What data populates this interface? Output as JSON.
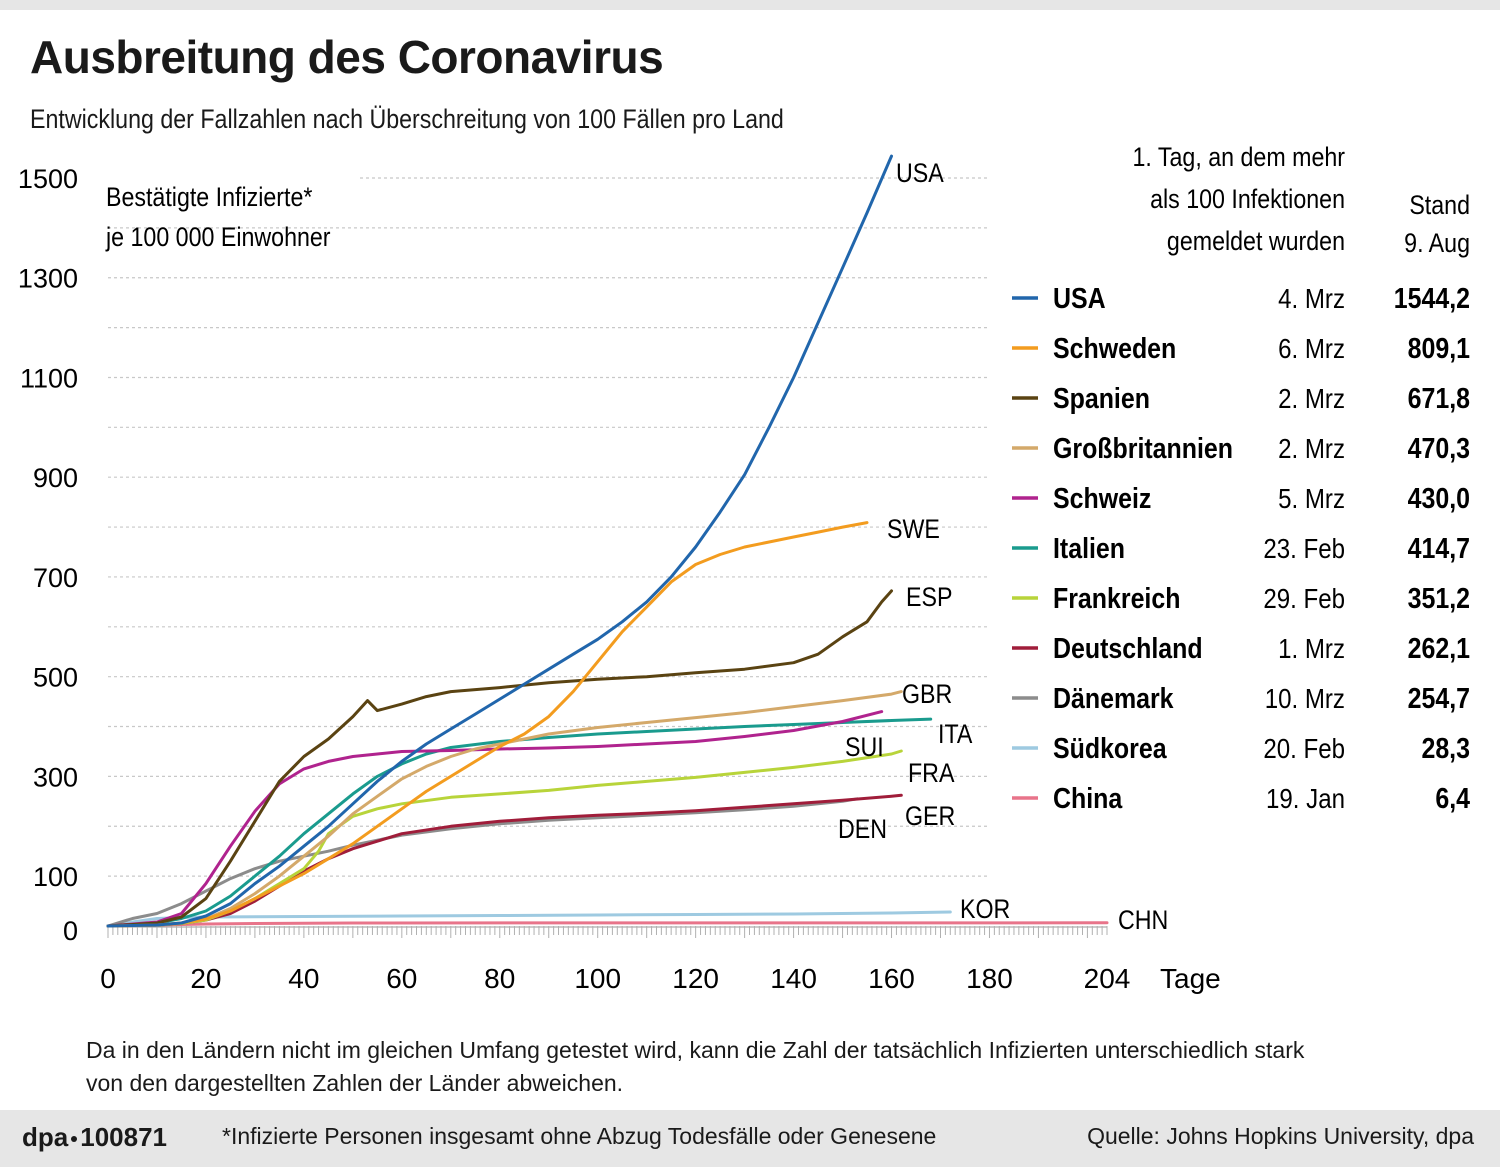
{
  "title": "Ausbreitung des Coronavirus",
  "subtitle": "Entwicklung der Fallzahlen nach Überschreitung von 100 Fällen pro Land",
  "note": "Da in den Ländern nicht im gleichen Umfang getestet wird, kann die Zahl der tatsächlich Infizierten unterschiedlich stark von den dargestellten Zahlen der Länder abweichen.",
  "footer": {
    "brand": "dpa",
    "id": "100871",
    "footnote": "*Infizierte Personen insgesamt ohne Abzug Todesfälle oder Genesene",
    "source": "Quelle: Johns Hopkins University, dpa"
  },
  "legend_header": {
    "col1": [
      "1. Tag, an dem mehr",
      "als 100 Infektionen",
      "gemeldet wurden"
    ],
    "col2": [
      "Stand",
      "9. Aug"
    ]
  },
  "chart_data": {
    "type": "line",
    "title": "Ausbreitung des Coronavirus",
    "ylabel": [
      "Bestätigte Infizierte*",
      "je 100 000 Einwohner"
    ],
    "xlabel": "Tage",
    "xlim": [
      0,
      204
    ],
    "ylim": [
      0,
      1500
    ],
    "xticks": [
      0,
      20,
      40,
      60,
      80,
      100,
      120,
      140,
      160,
      180,
      204
    ],
    "yticks": [
      0,
      100,
      300,
      500,
      700,
      900,
      1100,
      1300,
      1500
    ],
    "grid": "horizontal dashed",
    "series": [
      {
        "name": "USA",
        "label": "USA",
        "legend": "USA",
        "first_day": "4. Mrz",
        "value": "1544,2",
        "color": "#2166ac",
        "points": [
          [
            0,
            0
          ],
          [
            10,
            2
          ],
          [
            15,
            6
          ],
          [
            20,
            20
          ],
          [
            25,
            45
          ],
          [
            30,
            85
          ],
          [
            35,
            120
          ],
          [
            40,
            160
          ],
          [
            45,
            200
          ],
          [
            50,
            245
          ],
          [
            55,
            290
          ],
          [
            60,
            330
          ],
          [
            65,
            365
          ],
          [
            70,
            395
          ],
          [
            75,
            425
          ],
          [
            80,
            455
          ],
          [
            85,
            485
          ],
          [
            90,
            515
          ],
          [
            95,
            545
          ],
          [
            100,
            575
          ],
          [
            105,
            610
          ],
          [
            110,
            650
          ],
          [
            115,
            700
          ],
          [
            120,
            760
          ],
          [
            125,
            830
          ],
          [
            130,
            905
          ],
          [
            135,
            1000
          ],
          [
            140,
            1100
          ],
          [
            145,
            1210
          ],
          [
            150,
            1320
          ],
          [
            155,
            1430
          ],
          [
            160,
            1544
          ]
        ]
      },
      {
        "name": "Schweden",
        "label": "SWE",
        "legend": "Schweden",
        "first_day": "6. Mrz",
        "value": "809,1",
        "color": "#f39c1f",
        "points": [
          [
            0,
            0
          ],
          [
            10,
            2
          ],
          [
            15,
            6
          ],
          [
            20,
            14
          ],
          [
            25,
            30
          ],
          [
            30,
            55
          ],
          [
            35,
            80
          ],
          [
            40,
            105
          ],
          [
            45,
            135
          ],
          [
            50,
            165
          ],
          [
            55,
            200
          ],
          [
            60,
            235
          ],
          [
            65,
            270
          ],
          [
            70,
            300
          ],
          [
            75,
            330
          ],
          [
            80,
            360
          ],
          [
            85,
            385
          ],
          [
            90,
            420
          ],
          [
            95,
            470
          ],
          [
            100,
            530
          ],
          [
            105,
            590
          ],
          [
            110,
            640
          ],
          [
            115,
            690
          ],
          [
            120,
            725
          ],
          [
            125,
            745
          ],
          [
            130,
            760
          ],
          [
            135,
            770
          ],
          [
            140,
            780
          ],
          [
            145,
            790
          ],
          [
            150,
            800
          ],
          [
            155,
            809
          ]
        ]
      },
      {
        "name": "Spanien",
        "label": "ESP",
        "legend": "Spanien",
        "first_day": "2. Mrz",
        "value": "671,8",
        "color": "#5a4312",
        "points": [
          [
            0,
            0
          ],
          [
            10,
            6
          ],
          [
            15,
            18
          ],
          [
            20,
            55
          ],
          [
            25,
            130
          ],
          [
            30,
            210
          ],
          [
            35,
            290
          ],
          [
            40,
            340
          ],
          [
            45,
            375
          ],
          [
            50,
            420
          ],
          [
            53,
            452
          ],
          [
            55,
            432
          ],
          [
            60,
            445
          ],
          [
            65,
            460
          ],
          [
            70,
            470
          ],
          [
            80,
            478
          ],
          [
            90,
            488
          ],
          [
            100,
            495
          ],
          [
            110,
            500
          ],
          [
            120,
            508
          ],
          [
            130,
            515
          ],
          [
            140,
            528
          ],
          [
            145,
            545
          ],
          [
            150,
            580
          ],
          [
            155,
            610
          ],
          [
            158,
            650
          ],
          [
            160,
            672
          ]
        ]
      },
      {
        "name": "Großbritannien",
        "label": "GBR",
        "legend": "Großbritannien",
        "first_day": "2. Mrz",
        "value": "470,3",
        "color": "#d4a96a",
        "points": [
          [
            0,
            0
          ],
          [
            10,
            2
          ],
          [
            15,
            6
          ],
          [
            20,
            14
          ],
          [
            25,
            35
          ],
          [
            30,
            65
          ],
          [
            35,
            100
          ],
          [
            40,
            140
          ],
          [
            45,
            180
          ],
          [
            50,
            225
          ],
          [
            55,
            260
          ],
          [
            60,
            295
          ],
          [
            65,
            320
          ],
          [
            70,
            340
          ],
          [
            75,
            355
          ],
          [
            80,
            365
          ],
          [
            85,
            375
          ],
          [
            90,
            385
          ],
          [
            100,
            398
          ],
          [
            110,
            408
          ],
          [
            120,
            418
          ],
          [
            130,
            428
          ],
          [
            140,
            440
          ],
          [
            150,
            452
          ],
          [
            160,
            465
          ],
          [
            162,
            470
          ]
        ]
      },
      {
        "name": "Schweiz",
        "label": "SUI",
        "legend": "Schweiz",
        "first_day": "5. Mrz",
        "value": "430,0",
        "color": "#b0238e",
        "points": [
          [
            0,
            0
          ],
          [
            10,
            8
          ],
          [
            15,
            25
          ],
          [
            20,
            85
          ],
          [
            25,
            160
          ],
          [
            30,
            230
          ],
          [
            35,
            285
          ],
          [
            40,
            315
          ],
          [
            45,
            330
          ],
          [
            50,
            340
          ],
          [
            55,
            345
          ],
          [
            60,
            350
          ],
          [
            70,
            352
          ],
          [
            80,
            355
          ],
          [
            90,
            357
          ],
          [
            100,
            360
          ],
          [
            110,
            365
          ],
          [
            120,
            370
          ],
          [
            130,
            380
          ],
          [
            140,
            392
          ],
          [
            150,
            410
          ],
          [
            158,
            430
          ]
        ]
      },
      {
        "name": "Italien",
        "label": "ITA",
        "legend": "Italien",
        "first_day": "23. Feb",
        "value": "414,7",
        "color": "#1a9b8e",
        "points": [
          [
            0,
            0
          ],
          [
            5,
            2
          ],
          [
            10,
            6
          ],
          [
            15,
            15
          ],
          [
            20,
            30
          ],
          [
            25,
            60
          ],
          [
            30,
            100
          ],
          [
            35,
            140
          ],
          [
            40,
            185
          ],
          [
            45,
            225
          ],
          [
            50,
            265
          ],
          [
            55,
            300
          ],
          [
            60,
            325
          ],
          [
            65,
            345
          ],
          [
            70,
            358
          ],
          [
            80,
            370
          ],
          [
            90,
            378
          ],
          [
            100,
            385
          ],
          [
            110,
            390
          ],
          [
            120,
            395
          ],
          [
            130,
            400
          ],
          [
            140,
            404
          ],
          [
            150,
            408
          ],
          [
            160,
            412
          ],
          [
            168,
            415
          ]
        ]
      },
      {
        "name": "Frankreich",
        "label": "FRA",
        "legend": "Frankreich",
        "first_day": "29. Feb",
        "value": "351,2",
        "color": "#b8d43a",
        "points": [
          [
            0,
            0
          ],
          [
            10,
            2
          ],
          [
            15,
            5
          ],
          [
            20,
            12
          ],
          [
            25,
            30
          ],
          [
            30,
            55
          ],
          [
            35,
            85
          ],
          [
            40,
            115
          ],
          [
            43,
            150
          ],
          [
            45,
            185
          ],
          [
            50,
            220
          ],
          [
            55,
            235
          ],
          [
            60,
            245
          ],
          [
            70,
            258
          ],
          [
            80,
            265
          ],
          [
            90,
            272
          ],
          [
            100,
            282
          ],
          [
            110,
            290
          ],
          [
            120,
            298
          ],
          [
            130,
            308
          ],
          [
            140,
            318
          ],
          [
            150,
            330
          ],
          [
            160,
            345
          ],
          [
            162,
            351
          ]
        ]
      },
      {
        "name": "Deutschland",
        "label": "GER",
        "legend": "Deutschland",
        "first_day": "1. Mrz",
        "value": "262,1",
        "color": "#a01d3a",
        "points": [
          [
            0,
            0
          ],
          [
            10,
            2
          ],
          [
            15,
            5
          ],
          [
            20,
            12
          ],
          [
            25,
            25
          ],
          [
            30,
            50
          ],
          [
            35,
            80
          ],
          [
            40,
            110
          ],
          [
            45,
            135
          ],
          [
            50,
            155
          ],
          [
            55,
            170
          ],
          [
            60,
            185
          ],
          [
            70,
            200
          ],
          [
            80,
            210
          ],
          [
            90,
            217
          ],
          [
            100,
            222
          ],
          [
            110,
            226
          ],
          [
            120,
            231
          ],
          [
            130,
            238
          ],
          [
            140,
            245
          ],
          [
            150,
            252
          ],
          [
            160,
            260
          ],
          [
            162,
            262
          ]
        ]
      },
      {
        "name": "Dänemark",
        "label": "DEN",
        "legend": "Dänemark",
        "first_day": "10. Mrz",
        "value": "254,7",
        "color": "#8c8c8c",
        "points": [
          [
            0,
            0
          ],
          [
            5,
            15
          ],
          [
            10,
            25
          ],
          [
            15,
            45
          ],
          [
            20,
            70
          ],
          [
            25,
            95
          ],
          [
            30,
            115
          ],
          [
            35,
            130
          ],
          [
            40,
            140
          ],
          [
            45,
            150
          ],
          [
            50,
            162
          ],
          [
            55,
            172
          ],
          [
            60,
            182
          ],
          [
            70,
            195
          ],
          [
            80,
            205
          ],
          [
            90,
            212
          ],
          [
            100,
            217
          ],
          [
            110,
            222
          ],
          [
            120,
            227
          ],
          [
            130,
            233
          ],
          [
            140,
            240
          ],
          [
            150,
            250
          ],
          [
            153,
            255
          ]
        ]
      },
      {
        "name": "Südkorea",
        "label": "KOR",
        "legend": "Südkorea",
        "first_day": "20. Feb",
        "value": "28,3",
        "color": "#9ecae1",
        "points": [
          [
            0,
            0
          ],
          [
            5,
            8
          ],
          [
            10,
            15
          ],
          [
            15,
            17
          ],
          [
            20,
            18
          ],
          [
            40,
            19
          ],
          [
            60,
            20
          ],
          [
            80,
            21
          ],
          [
            100,
            22
          ],
          [
            120,
            23
          ],
          [
            140,
            24
          ],
          [
            160,
            26
          ],
          [
            172,
            28
          ]
        ]
      },
      {
        "name": "China",
        "label": "CHN",
        "legend": "China",
        "first_day": "19. Jan",
        "value": "6,4",
        "color": "#e8748a",
        "points": [
          [
            0,
            0
          ],
          [
            5,
            1
          ],
          [
            10,
            2
          ],
          [
            20,
            4
          ],
          [
            30,
            5
          ],
          [
            50,
            6
          ],
          [
            100,
            6.2
          ],
          [
            150,
            6.3
          ],
          [
            204,
            6.4
          ]
        ]
      }
    ]
  }
}
